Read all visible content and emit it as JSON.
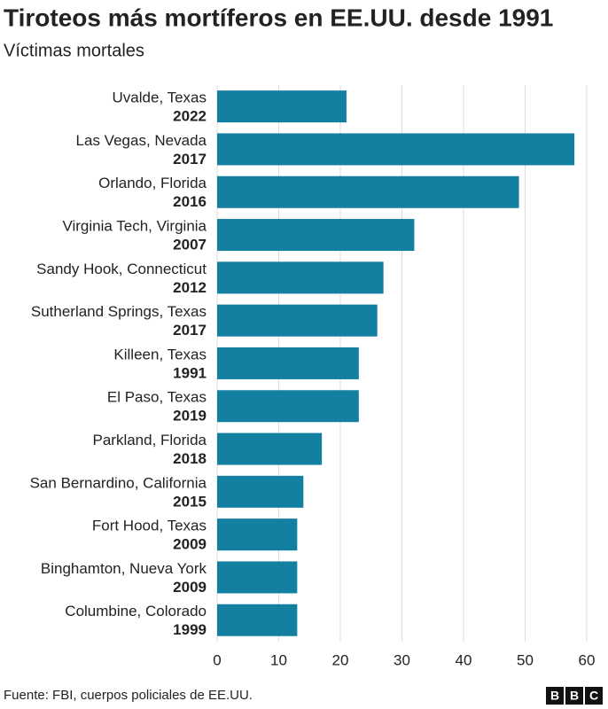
{
  "chart_data": {
    "type": "barh",
    "title": "Tiroteos más mortíferos en EE.UU. desde 1991",
    "subtitle": "Víctimas mortales",
    "categories": [
      "Uvalde, Texas",
      "Las Vegas, Nevada",
      "Orlando, Florida",
      "Virginia Tech, Virginia",
      "Sandy Hook, Connecticut",
      "Sutherland Springs, Texas",
      "Killeen, Texas",
      "El Paso, Texas",
      "Parkland, Florida",
      "San Bernardino, California",
      "Fort Hood, Texas",
      "Binghamton, Nueva York",
      "Columbine, Colorado"
    ],
    "years": [
      "2022",
      "2017",
      "2016",
      "2007",
      "2012",
      "2017",
      "1991",
      "2019",
      "2018",
      "2015",
      "2009",
      "2009",
      "1999"
    ],
    "values": [
      21,
      58,
      49,
      32,
      27,
      26,
      23,
      23,
      17,
      14,
      13,
      13,
      13
    ],
    "color": "#1380a1",
    "xlim": [
      0,
      60
    ],
    "xticks": [
      0,
      10,
      20,
      30,
      40,
      50,
      60
    ],
    "grid": true,
    "source": "Fuente: FBI, cuerpos policiales de EE.UU.",
    "logo": [
      "B",
      "B",
      "C"
    ]
  }
}
